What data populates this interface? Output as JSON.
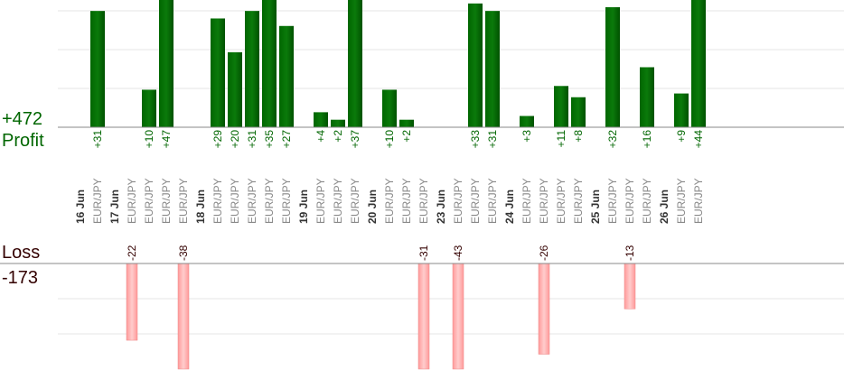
{
  "summary": {
    "profit_total": "+472",
    "profit_label": "Profit",
    "loss_label": "Loss",
    "loss_total": "-173"
  },
  "colors": {
    "profit_bar": "#006600",
    "profit_text": "#006600",
    "loss_bar": "#ffaaaa",
    "loss_text": "#330000",
    "date_text": "#333333",
    "symbol_text": "#888888",
    "grid": "#e6e6e6",
    "baseline": "#888888"
  },
  "chart_data": {
    "type": "bar",
    "profit_ylim": [
      0,
      32
    ],
    "loss_ylim": [
      0,
      30
    ],
    "groups": [
      {
        "date": "16 Jun",
        "trades": [
          {
            "symbol": "EUR/JPY",
            "value": 31
          }
        ]
      },
      {
        "date": "17 Jun",
        "trades": [
          {
            "symbol": "EUR/JPY",
            "value": -22
          },
          {
            "symbol": "EUR/JPY",
            "value": 10
          },
          {
            "symbol": "EUR/JPY",
            "value": 47
          },
          {
            "symbol": "EUR/JPY",
            "value": -38
          }
        ]
      },
      {
        "date": "18 Jun",
        "trades": [
          {
            "symbol": "EUR/JPY",
            "value": 29
          },
          {
            "symbol": "EUR/JPY",
            "value": 20
          },
          {
            "symbol": "EUR/JPY",
            "value": 31
          },
          {
            "symbol": "EUR/JPY",
            "value": 35
          },
          {
            "symbol": "EUR/JPY",
            "value": 27
          }
        ]
      },
      {
        "date": "19 Jun",
        "trades": [
          {
            "symbol": "EUR/JPY",
            "value": 4
          },
          {
            "symbol": "EUR/JPY",
            "value": 2
          },
          {
            "symbol": "EUR/JPY",
            "value": 37
          }
        ]
      },
      {
        "date": "20 Jun",
        "trades": [
          {
            "symbol": "EUR/JPY",
            "value": 10
          },
          {
            "symbol": "EUR/JPY",
            "value": 2
          },
          {
            "symbol": "EUR/JPY",
            "value": -31
          }
        ]
      },
      {
        "date": "23 Jun",
        "trades": [
          {
            "symbol": "EUR/JPY",
            "value": -43
          },
          {
            "symbol": "EUR/JPY",
            "value": 33
          },
          {
            "symbol": "EUR/JPY",
            "value": 31
          }
        ]
      },
      {
        "date": "24 Jun",
        "trades": [
          {
            "symbol": "EUR/JPY",
            "value": 3
          },
          {
            "symbol": "EUR/JPY",
            "value": -26
          },
          {
            "symbol": "EUR/JPY",
            "value": 11
          },
          {
            "symbol": "EUR/JPY",
            "value": 8
          }
        ]
      },
      {
        "date": "25 Jun",
        "trades": [
          {
            "symbol": "EUR/JPY",
            "value": 32
          },
          {
            "symbol": "EUR/JPY",
            "value": -13
          },
          {
            "symbol": "EUR/JPY",
            "value": 16
          }
        ]
      },
      {
        "date": "26 Jun",
        "trades": [
          {
            "symbol": "EUR/JPY",
            "value": 9
          },
          {
            "symbol": "EUR/JPY",
            "value": 44
          }
        ]
      }
    ]
  }
}
